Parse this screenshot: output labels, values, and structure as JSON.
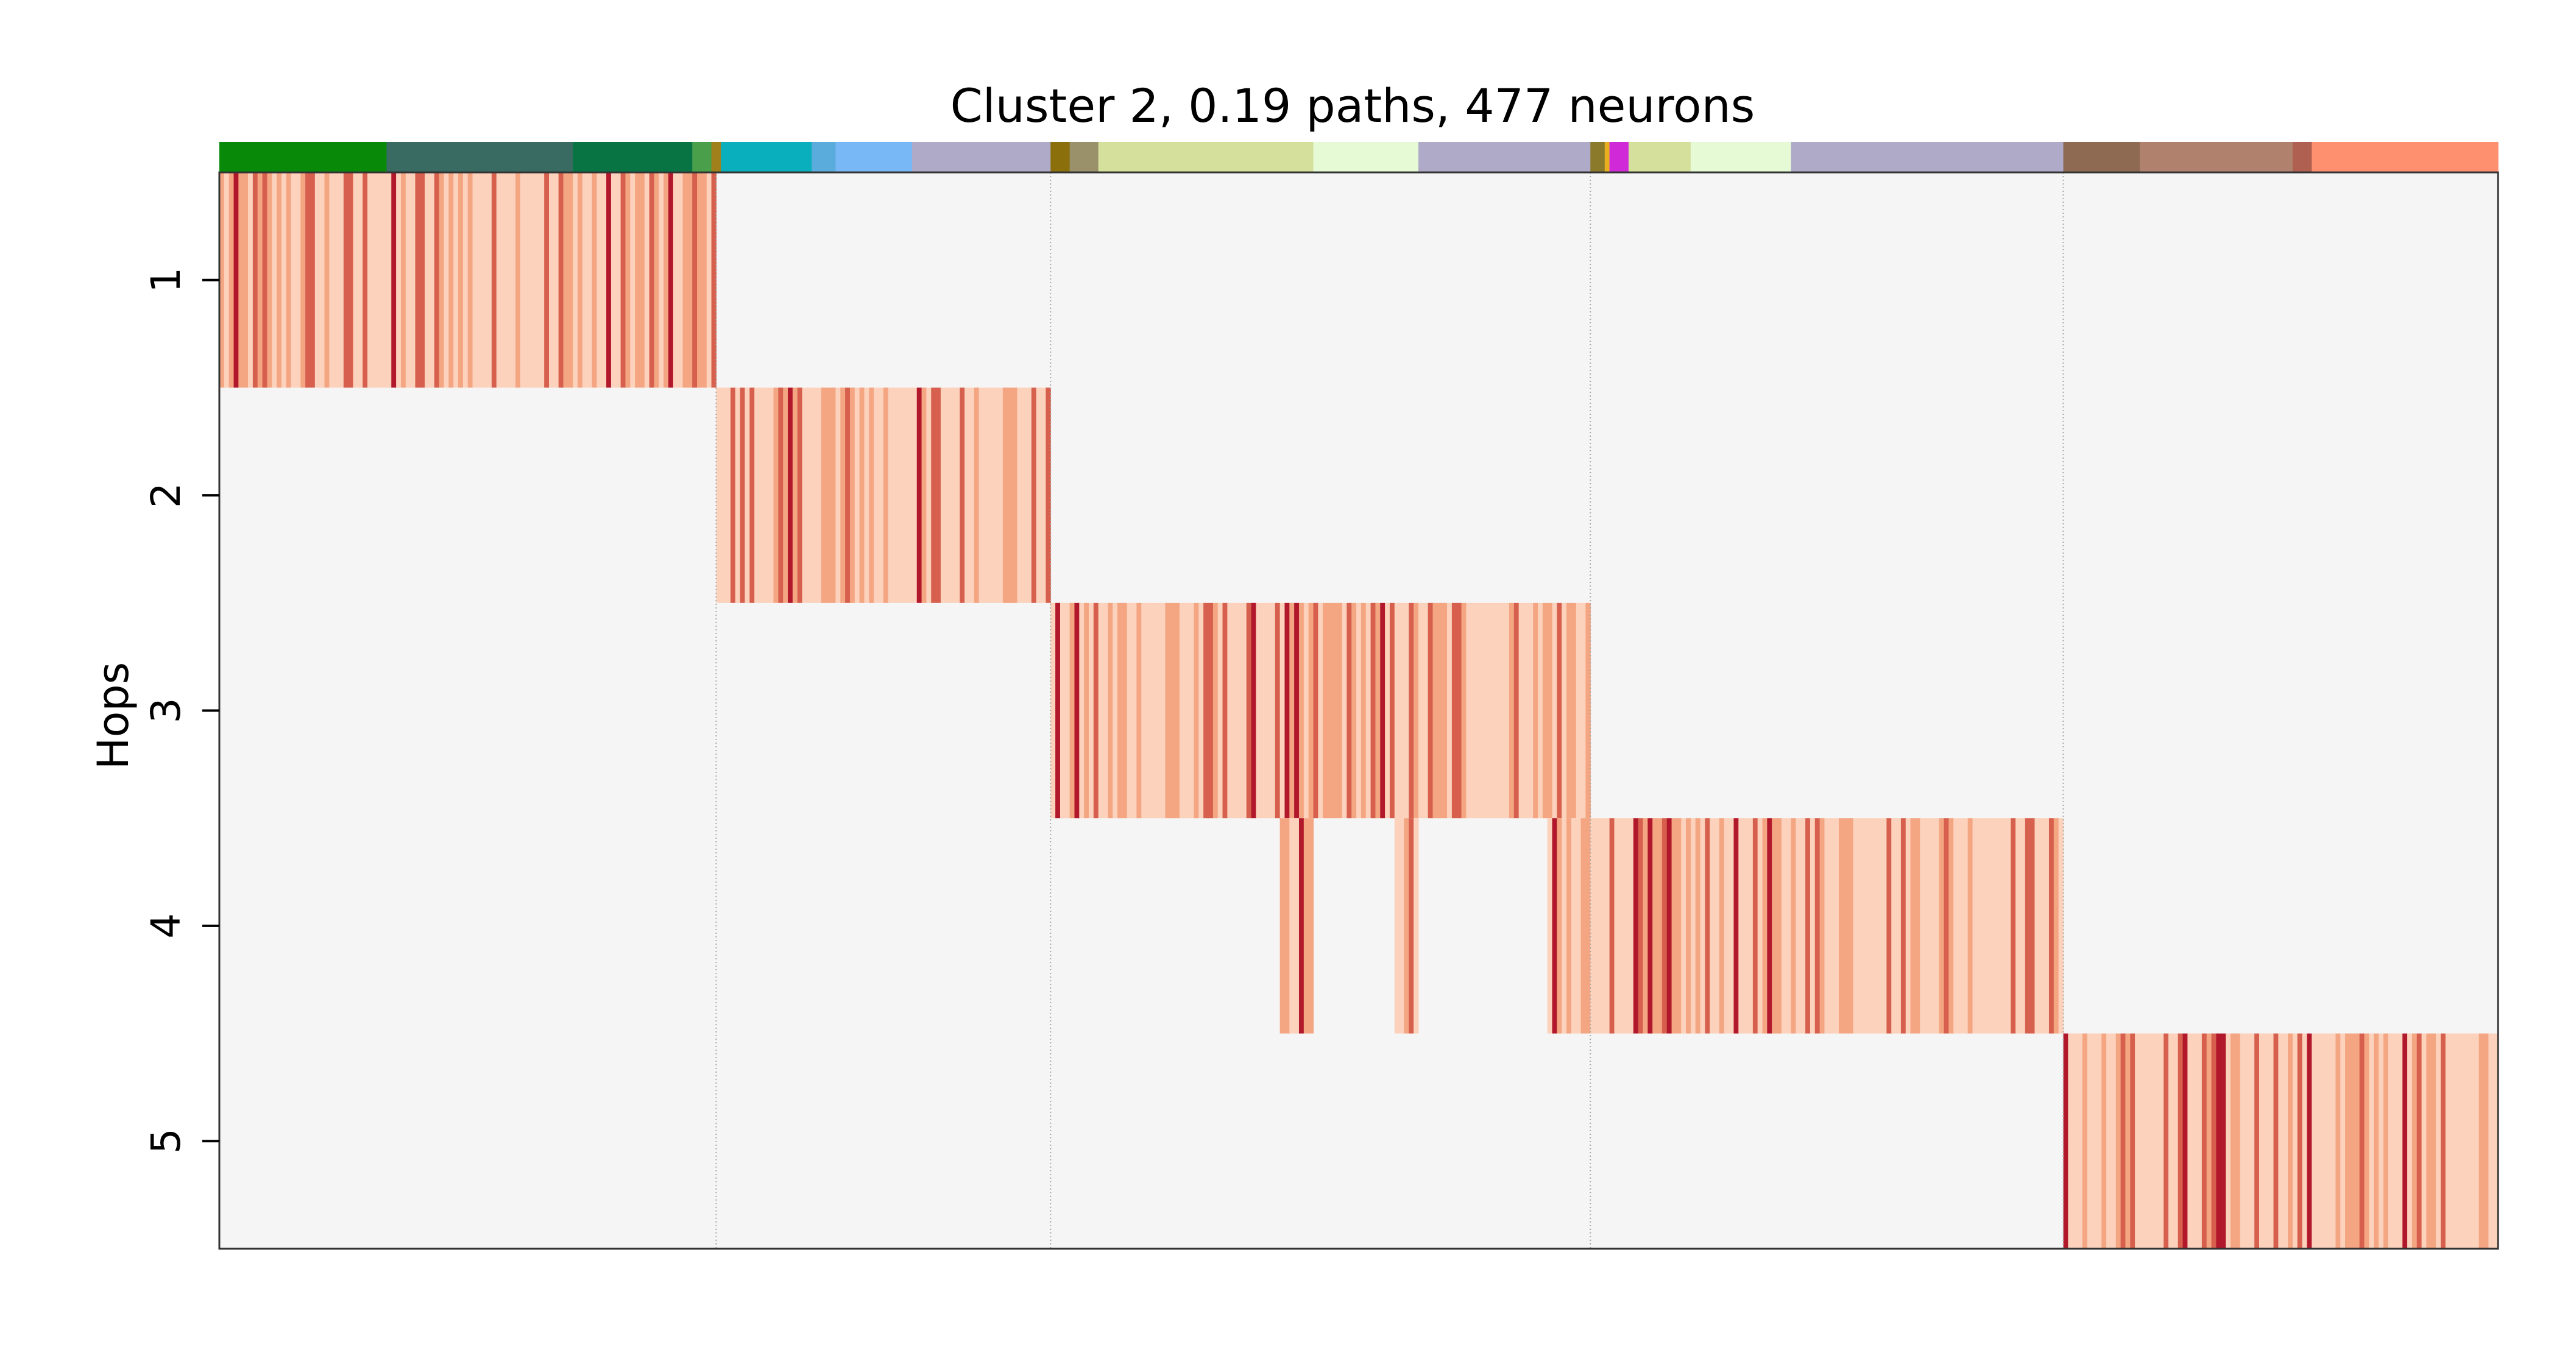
{
  "chart_data": {
    "type": "heatmap",
    "title": "Cluster 2, 0.19 paths, 477 neurons",
    "ylabel": "Hops",
    "xlabel": "",
    "rows": [
      "1",
      "2",
      "3",
      "4",
      "5"
    ],
    "n_columns": 477,
    "background_color": "#f5f5f5",
    "colormap": "Reds",
    "grid": "vertical dotted lines at group boundaries",
    "group_boundaries": [
      104,
      174,
      287,
      386,
      477
    ],
    "group_colors": [
      {
        "end": 35,
        "color": "#088a08"
      },
      {
        "end": 74,
        "color": "#3a6b63"
      },
      {
        "end": 99,
        "color": "#087444"
      },
      {
        "end": 103,
        "color": "#4aa04a"
      },
      {
        "end": 105,
        "color": "#a0801a"
      },
      {
        "end": 124,
        "color": "#0aafbe"
      },
      {
        "end": 129,
        "color": "#5aacdd"
      },
      {
        "end": 145,
        "color": "#78b8f6"
      },
      {
        "end": 174,
        "color": "#aeaac8"
      },
      {
        "end": 178,
        "color": "#8b6f0a"
      },
      {
        "end": 184,
        "color": "#9a906a"
      },
      {
        "end": 229,
        "color": "#d5e09c"
      },
      {
        "end": 251,
        "color": "#e6fad6"
      },
      {
        "end": 287,
        "color": "#aeaac8"
      },
      {
        "end": 290,
        "color": "#8b7a2a"
      },
      {
        "end": 291,
        "color": "#e8b020"
      },
      {
        "end": 295,
        "color": "#d02ad8"
      },
      {
        "end": 308,
        "color": "#d5e09c"
      },
      {
        "end": 329,
        "color": "#e6fad6"
      },
      {
        "end": 386,
        "color": "#aeaac8"
      },
      {
        "end": 402,
        "color": "#8e6a52"
      },
      {
        "end": 434,
        "color": "#b0826e"
      },
      {
        "end": 438,
        "color": "#b06050"
      },
      {
        "end": 477,
        "color": "#fe9070"
      }
    ],
    "blocks": [
      {
        "row": "1",
        "col_start": 0,
        "col_end": 104
      },
      {
        "row": "2",
        "col_start": 104,
        "col_end": 174
      },
      {
        "row": "3",
        "col_start": 174,
        "col_end": 287
      },
      {
        "row": "4",
        "col_start": 222,
        "col_end": 229
      },
      {
        "row": "4",
        "col_start": 246,
        "col_end": 251
      },
      {
        "row": "4",
        "col_start": 278,
        "col_end": 386
      },
      {
        "row": "5",
        "col_start": 386,
        "col_end": 477
      }
    ],
    "value_scale": {
      "light": "#fcd2bc",
      "mid": "#f4a582",
      "dark": "#d6604d",
      "darkest": "#b2182b"
    }
  }
}
